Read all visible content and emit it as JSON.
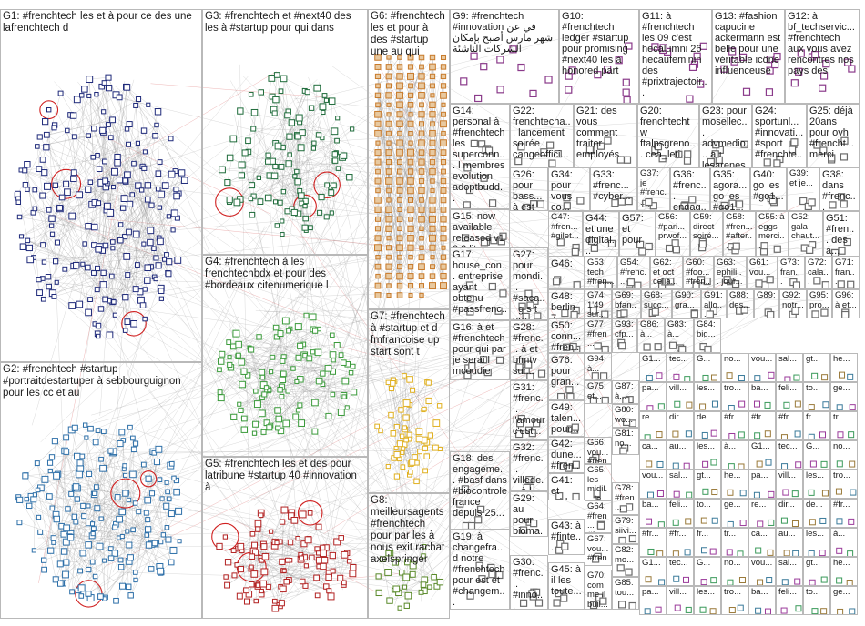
{
  "groups": [
    {
      "id": "G1",
      "label": "G1: #frenchtech les et à pour ce des une lafrenchtech d",
      "color": "#1f2a7a"
    },
    {
      "id": "G2",
      "label": "G2: #frenchtech #startup #portraitdestartuper à sebbourguignon pour les cc et au",
      "color": "#2d6fa8"
    },
    {
      "id": "G3",
      "label": "G3: #frenchtech et #next40 des les à #startup pour qui dans",
      "color": "#1e6b3a"
    },
    {
      "id": "G4",
      "label": "G4: #frenchtech à les frenchtechbdx et pour des #bordeaux citenumerique l",
      "color": "#3a9a3a"
    },
    {
      "id": "G5",
      "label": "G5: #frenchtech les et des pour latribune #startup 40 #innovation à",
      "color": "#b22222"
    },
    {
      "id": "G6",
      "label": "G6: #frenchtech les et pour à des #startup une au qui",
      "color": "#c87a2a"
    },
    {
      "id": "G7",
      "label": "G7: #frenchtech à #startup et d fmfrancoise up start sont t",
      "color": "#e0b020"
    },
    {
      "id": "G8",
      "label": "G8: meilleursagents #frenchtech pour par les à nous exit rachat axelspringer",
      "color": "#5a8a2a"
    },
    {
      "id": "G9",
      "label": "G9: #frenchtech #innovation في عن شهر مارس أصبح بإمكان الشركات الناشئة",
      "color": "#8a3a8a"
    },
    {
      "id": "G10",
      "label": "G10: #frenchtech ledger #startup pour promising #next40 les à honored part",
      "color": "#8a3a8a"
    },
    {
      "id": "G11",
      "label": "G11: à #frenchtech les 09 c'est hecalumni 26 hecaufeminin des #prixtrajectoir...",
      "color": "#8a3a8a"
    },
    {
      "id": "G12",
      "label": "G12: à bf_techservic... #frenchtech aux vous avez rencontres nos pays des",
      "color": "#8a3a8a"
    },
    {
      "id": "G13",
      "label": "G13: #fashion capucine ackermann est belle pour une véritable icône influenceuse",
      "color": "#8a3a8a"
    },
    {
      "id": "G14",
      "label": "G14: personal à #frenchtech les superconn... l membres evolution adoptbudd...",
      "color": "#6a6a6a"
    },
    {
      "id": "G15",
      "label": "G15: now available released v1 0 2 lite client cguigourez windows",
      "color": "#6a6a6a"
    },
    {
      "id": "G16",
      "label": "G16: à et #frenchtech pour qui par je serai l mcoudie",
      "color": "#6a6a6a"
    },
    {
      "id": "G17",
      "label": "G17: house_con... entreprise ayant obtenu #passfrenc...",
      "color": "#6a6a6a"
    },
    {
      "id": "G18",
      "label": "G18: des engageme... #basf dans #biocontrole france depuis 25...",
      "color": "#6a6a6a"
    },
    {
      "id": "G19",
      "label": "G19: à changefra... d notre #frenchtech pour est et #changem...",
      "color": "#6a6a6a"
    },
    {
      "id": "G20",
      "label": "G20: frenchtechtw ftalpsgreno... cea_leti...",
      "color": "#6a6a6a"
    },
    {
      "id": "G21",
      "label": "G21: des vous comment traiter employés...",
      "color": "#6a6a6a"
    },
    {
      "id": "G22",
      "label": "G22: frenchtecha... lancement soirée cangeoffici...",
      "color": "#6a6a6a"
    },
    {
      "id": "G23",
      "label": "G23: pour mosellec... advmedio... au lesarenes...",
      "color": "#6a6a6a"
    },
    {
      "id": "G24",
      "label": "G24: sportunl... #innovati... #sport #frenchte...",
      "color": "#6a6a6a"
    },
    {
      "id": "G25",
      "label": "G25: déjà 20ans pour ovh #frencht... merci",
      "color": "#6a6a6a"
    },
    {
      "id": "G26",
      "label": "G26: pour bass... à est au tester...",
      "color": "#6a6a6a"
    },
    {
      "id": "G27",
      "label": "G27: pour mondi... #saca... g s t pre...",
      "color": "#6a6a6a"
    },
    {
      "id": "G28",
      "label": "G28: #frenc... à et bfmtv sur...",
      "color": "#6a6a6a"
    },
    {
      "id": "G29",
      "label": "G29: au pour bioma... notre...",
      "color": "#6a6a6a"
    },
    {
      "id": "G30",
      "label": "G30: #frenc... #inno... #start...",
      "color": "#6a6a6a"
    },
    {
      "id": "G31",
      "label": "G31: #frenc... l'amour c'est...",
      "color": "#6a6a6a"
    },
    {
      "id": "G32",
      "label": "G32: #frenc... villede... à l...",
      "color": "#6a6a6a"
    },
    {
      "id": "G33",
      "label": "G33: #frenc... #cyber...",
      "color": "#6a6a6a"
    },
    {
      "id": "G34",
      "label": "G34: pour vous co...",
      "color": "#6a6a6a"
    },
    {
      "id": "G35",
      "label": "G35: agora... go les #go1...",
      "color": "#6a6a6a"
    },
    {
      "id": "G36",
      "label": "G36: #frenc... engag...",
      "color": "#6a6a6a"
    },
    {
      "id": "G37",
      "label": "G37: je #frenc...",
      "color": "#6a6a6a"
    },
    {
      "id": "G38",
      "label": "G38: dans #frenc...",
      "color": "#6a6a6a"
    },
    {
      "id": "G39",
      "label": "G39: et je...",
      "color": "#6a6a6a"
    },
    {
      "id": "G40",
      "label": "G40: go les #go1...",
      "color": "#6a6a6a"
    },
    {
      "id": "G41",
      "label": "G41: et erida...",
      "color": "#6a6a6a"
    },
    {
      "id": "G42",
      "label": "G42: dune... #fren...",
      "color": "#6a6a6a"
    },
    {
      "id": "G43",
      "label": "G43: à #finte... #fren...",
      "color": "#6a6a6a"
    },
    {
      "id": "G44",
      "label": "G44: et une digital...",
      "color": "#6a6a6a"
    },
    {
      "id": "G45",
      "label": "G45: à il les toute...",
      "color": "#6a6a6a"
    },
    {
      "id": "G46",
      "label": "G46:",
      "color": "#6a6a6a"
    },
    {
      "id": "G47",
      "label": "G47: #fren... #gilet...",
      "color": "#6a6a6a"
    },
    {
      "id": "G48",
      "label": "G48: berlin 7...",
      "color": "#6a6a6a"
    },
    {
      "id": "G49",
      "label": "G49: talen... pour...",
      "color": "#6a6a6a"
    },
    {
      "id": "G50",
      "label": "G50: conn... #fren...",
      "color": "#6a6a6a"
    },
    {
      "id": "G51",
      "label": "G51: #fren... des à...",
      "color": "#6a6a6a"
    },
    {
      "id": "G52",
      "label": "G52: gala chaut...",
      "color": "#6a6a6a"
    },
    {
      "id": "G53",
      "label": "G53: tech #fren...",
      "color": "#6a6a6a"
    },
    {
      "id": "G54",
      "label": "G54: #frenc... #fren...",
      "color": "#6a6a6a"
    },
    {
      "id": "G55",
      "label": "G55: à eggs' merci...",
      "color": "#6a6a6a"
    },
    {
      "id": "G56",
      "label": "G56: #pari... prwof...",
      "color": "#6a6a6a"
    },
    {
      "id": "G57",
      "label": "G57: et pour",
      "color": "#6a6a6a"
    },
    {
      "id": "G58",
      "label": "G58: #fren... #after...",
      "color": "#6a6a6a"
    },
    {
      "id": "G59",
      "label": "G59: direct soiré...",
      "color": "#6a6a6a"
    },
    {
      "id": "G60",
      "label": "G60: #foo... #fren...",
      "color": "#6a6a6a"
    },
    {
      "id": "G61",
      "label": "G61: vou...",
      "color": "#6a6a6a"
    },
    {
      "id": "G62",
      "label": "G62: et oct celia...",
      "color": "#6a6a6a"
    },
    {
      "id": "G63",
      "label": "G63: ephili... jour...",
      "color": "#6a6a6a"
    },
    {
      "id": "G64",
      "label": "G64: #fren... #fren...",
      "color": "#6a6a6a"
    },
    {
      "id": "G65",
      "label": "G65: les midil... le...",
      "color": "#6a6a6a"
    },
    {
      "id": "G66",
      "label": "G66: vou... #fren...",
      "color": "#6a6a6a"
    },
    {
      "id": "G67",
      "label": "G67: vou... #fren...",
      "color": "#6a6a6a"
    },
    {
      "id": "G68",
      "label": "G68: succ...",
      "color": "#6a6a6a"
    },
    {
      "id": "G69",
      "label": "G69: bfan...",
      "color": "#6a6a6a"
    },
    {
      "id": "G70",
      "label": "G70: comme il buil...",
      "color": "#6a6a6a"
    },
    {
      "id": "G71",
      "label": "G71: fran... ann...",
      "color": "#6a6a6a"
    },
    {
      "id": "G72",
      "label": "G72: cala... illus...",
      "color": "#6a6a6a"
    },
    {
      "id": "G73",
      "label": "G73: fran... ann...",
      "color": "#6a6a6a"
    },
    {
      "id": "G74",
      "label": "G74: 1'49 sur...",
      "color": "#6a6a6a"
    },
    {
      "id": "G75",
      "label": "G75: et...",
      "color": "#6a6a6a"
    },
    {
      "id": "G76",
      "label": "G76: pour gran...",
      "color": "#6a6a6a"
    },
    {
      "id": "G77",
      "label": "G77: #fren...",
      "color": "#6a6a6a"
    },
    {
      "id": "G78",
      "label": "G78: #fren...",
      "color": "#6a6a6a"
    },
    {
      "id": "G79",
      "label": "G79: siivi...",
      "color": "#6a6a6a"
    },
    {
      "id": "G80",
      "label": "G80: wo...",
      "color": "#6a6a6a"
    },
    {
      "id": "G81",
      "label": "G81: no...",
      "color": "#6a6a6a"
    },
    {
      "id": "G82",
      "label": "G82: mo...",
      "color": "#6a6a6a"
    },
    {
      "id": "G83",
      "label": "G83: à...",
      "color": "#6a6a6a"
    },
    {
      "id": "G84",
      "label": "G84: big...",
      "color": "#6a6a6a"
    },
    {
      "id": "G85",
      "label": "G85: tou...",
      "color": "#6a6a6a"
    },
    {
      "id": "G86",
      "label": "G86: à...",
      "color": "#6a6a6a"
    },
    {
      "id": "G87",
      "label": "G87: à...",
      "color": "#6a6a6a"
    },
    {
      "id": "G88",
      "label": "G88: des...",
      "color": "#6a6a6a"
    },
    {
      "id": "G89",
      "label": "G89:",
      "color": "#6a6a6a"
    },
    {
      "id": "G90",
      "label": "G90: gra...",
      "color": "#6a6a6a"
    },
    {
      "id": "G91",
      "label": "G91: allo...",
      "color": "#6a6a6a"
    },
    {
      "id": "G92",
      "label": "G92: notr...",
      "color": "#6a6a6a"
    },
    {
      "id": "G93",
      "label": "G93: cfp...",
      "color": "#6a6a6a"
    },
    {
      "id": "G94",
      "label": "G94: à...",
      "color": "#6a6a6a"
    },
    {
      "id": "G95",
      "label": "G95: pro...",
      "color": "#6a6a6a"
    },
    {
      "id": "G96",
      "label": "G96: à et...",
      "color": "#6a6a6a"
    }
  ],
  "micro_labels": [
    "G1...",
    "tec...",
    "G...",
    "no...",
    "vou...",
    "sal...",
    "gt...",
    "he...",
    "pa...",
    "vill...",
    "les...",
    "tro...",
    "ba...",
    "feli...",
    "to...",
    "ge...",
    "re...",
    "dir...",
    "de...",
    "#fr...",
    "#fr...",
    "#fr...",
    "fr...",
    "tr...",
    "ca...",
    "au...",
    "les...",
    "à..."
  ]
}
